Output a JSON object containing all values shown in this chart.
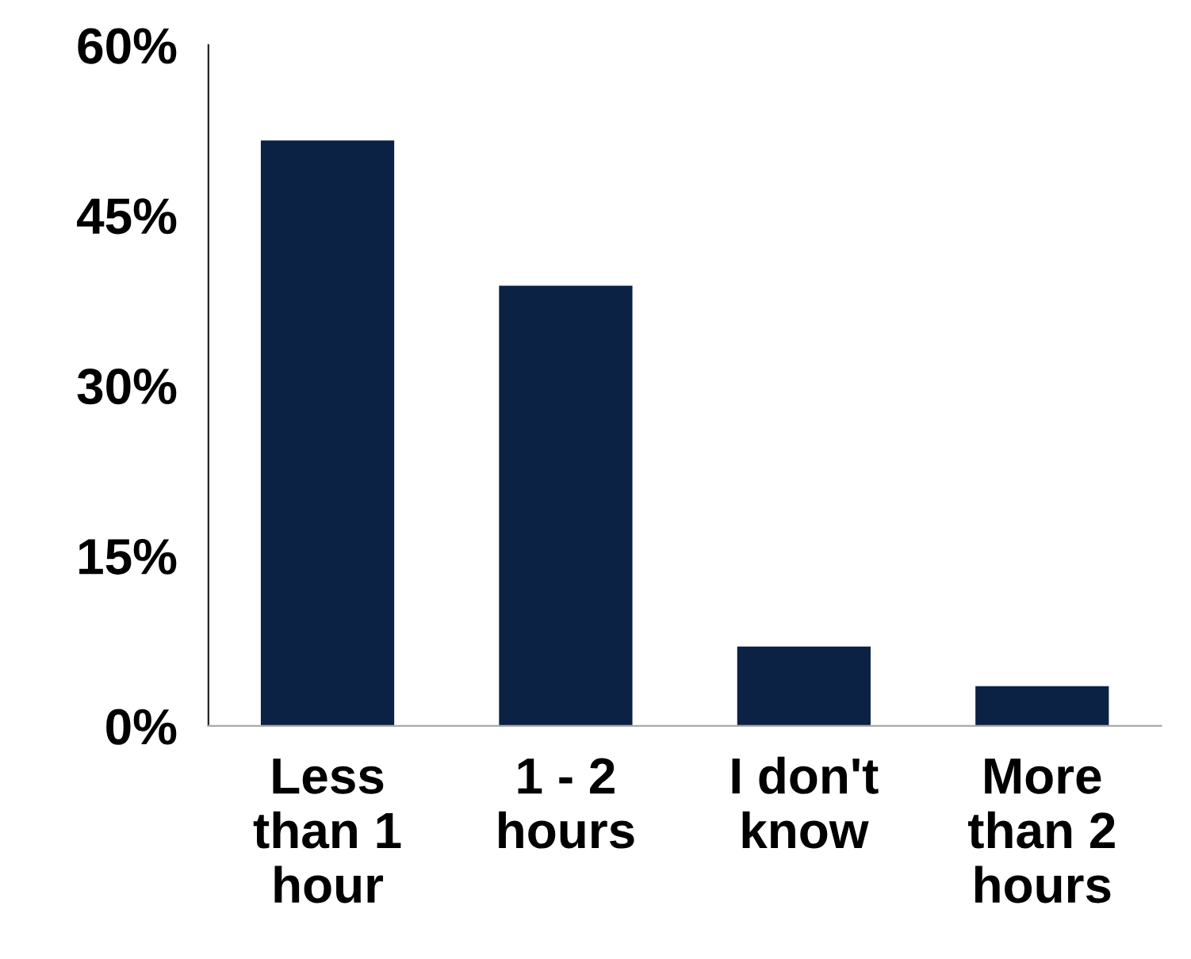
{
  "chart_data": {
    "type": "bar",
    "categories": [
      "Less\nthan 1\nhour",
      "1 - 2\nhours",
      "I don't\nknow",
      "More\nthan 2\nhours"
    ],
    "values": [
      51.6,
      38.8,
      7.0,
      3.5
    ],
    "color": "#0c2244",
    "ylim": [
      0,
      60
    ],
    "yticks": [
      {
        "value": 0,
        "label": "0%"
      },
      {
        "value": 15,
        "label": "15%"
      },
      {
        "value": 30,
        "label": "30%"
      },
      {
        "value": 45,
        "label": "45%"
      },
      {
        "value": 60,
        "label": "60%"
      }
    ],
    "grid": false,
    "legend": false
  }
}
